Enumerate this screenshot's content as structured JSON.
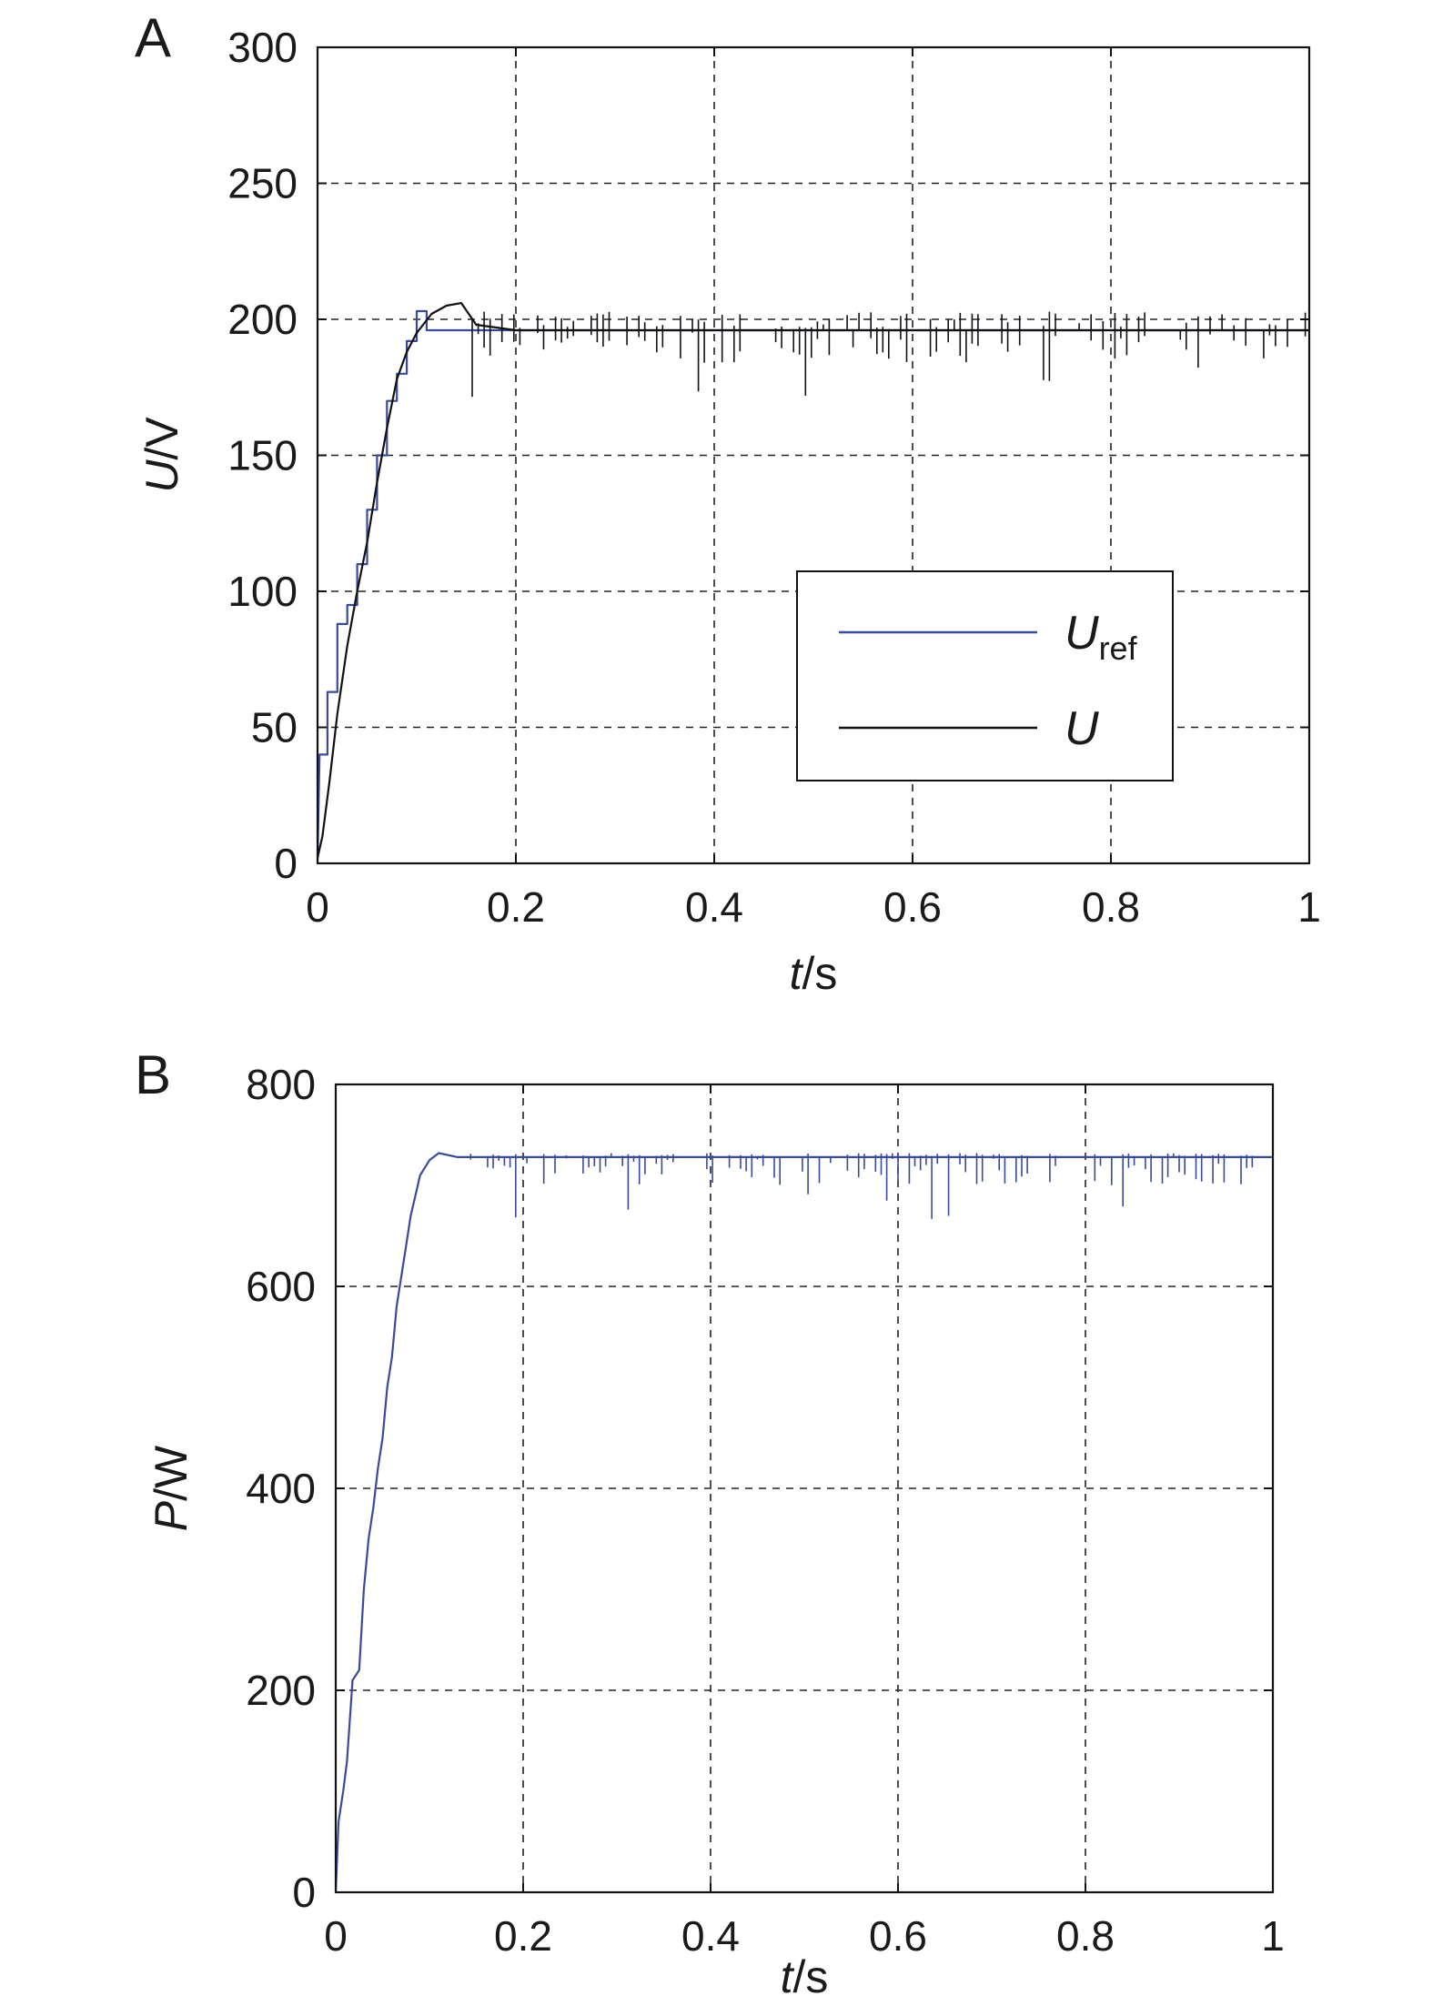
{
  "chart_data": [
    {
      "panel_label": "A",
      "type": "line",
      "xlabel": {
        "italic": "t",
        "rest": "/s"
      },
      "ylabel": {
        "italic": "U",
        "rest": "/V"
      },
      "xlim": [
        0,
        1
      ],
      "ylim": [
        0,
        300
      ],
      "xticks": [
        "0",
        "0.2",
        "0.4",
        "0.6",
        "0.8",
        "1"
      ],
      "yticks": [
        "0",
        "50",
        "100",
        "150",
        "200",
        "250",
        "300"
      ],
      "grid": true,
      "legend_placement": "center-right",
      "series": [
        {
          "name": "U",
          "name_sub": "ref",
          "color": "#3a4a9a",
          "points": [
            [
              0,
              0
            ],
            [
              0.002,
              40
            ],
            [
              0.01,
              40
            ],
            [
              0.01,
              63
            ],
            [
              0.02,
              63
            ],
            [
              0.02,
              88
            ],
            [
              0.03,
              88
            ],
            [
              0.03,
              95
            ],
            [
              0.04,
              95
            ],
            [
              0.04,
              110
            ],
            [
              0.05,
              110
            ],
            [
              0.05,
              130
            ],
            [
              0.06,
              130
            ],
            [
              0.06,
              150
            ],
            [
              0.07,
              150
            ],
            [
              0.07,
              170
            ],
            [
              0.08,
              170
            ],
            [
              0.08,
              180
            ],
            [
              0.09,
              180
            ],
            [
              0.09,
              192
            ],
            [
              0.1,
              192
            ],
            [
              0.1,
              203
            ],
            [
              0.11,
              203
            ],
            [
              0.11,
              196
            ],
            [
              0.16,
              196
            ],
            [
              1.0,
              196
            ]
          ]
        },
        {
          "name": "U",
          "color": "#111111",
          "points": [
            [
              0,
              2
            ],
            [
              0.005,
              10
            ],
            [
              0.012,
              30
            ],
            [
              0.02,
              55
            ],
            [
              0.03,
              80
            ],
            [
              0.04,
              100
            ],
            [
              0.05,
              118
            ],
            [
              0.06,
              140
            ],
            [
              0.07,
              160
            ],
            [
              0.08,
              178
            ],
            [
              0.09,
              188
            ],
            [
              0.1,
              195
            ],
            [
              0.115,
              202
            ],
            [
              0.13,
              205
            ],
            [
              0.145,
              206
            ],
            [
              0.16,
              198
            ],
            [
              0.2,
              196
            ],
            [
              1.0,
              196
            ]
          ],
          "noise": {
            "t_start": 0.15,
            "t_end": 1.0,
            "step": 0.006,
            "up": 7,
            "down": 12,
            "seed": 7
          }
        }
      ]
    },
    {
      "panel_label": "B",
      "type": "line",
      "xlabel": {
        "italic": "t",
        "rest": "/s"
      },
      "ylabel": {
        "italic": "P",
        "rest": "/W"
      },
      "xlim": [
        0,
        1
      ],
      "ylim": [
        0,
        800
      ],
      "xticks": [
        "0",
        "0.2",
        "0.4",
        "0.6",
        "0.8",
        "1"
      ],
      "yticks": [
        "0",
        "200",
        "400",
        "600",
        "800"
      ],
      "grid": true,
      "series": [
        {
          "color": "#3a4a9a",
          "points": [
            [
              0,
              0
            ],
            [
              0.003,
              70
            ],
            [
              0.008,
              100
            ],
            [
              0.012,
              130
            ],
            [
              0.018,
              210
            ],
            [
              0.025,
              220
            ],
            [
              0.03,
              300
            ],
            [
              0.035,
              350
            ],
            [
              0.04,
              380
            ],
            [
              0.045,
              420
            ],
            [
              0.05,
              450
            ],
            [
              0.055,
              500
            ],
            [
              0.06,
              530
            ],
            [
              0.065,
              580
            ],
            [
              0.07,
              610
            ],
            [
              0.075,
              640
            ],
            [
              0.08,
              670
            ],
            [
              0.085,
              690
            ],
            [
              0.09,
              710
            ],
            [
              0.1,
              725
            ],
            [
              0.11,
              732
            ],
            [
              0.13,
              728
            ],
            [
              1.0,
              728
            ]
          ],
          "noise": {
            "t_start": 0.12,
            "t_end": 1.0,
            "step": 0.006,
            "up": 4,
            "down": 28,
            "seed": 11
          }
        }
      ]
    }
  ]
}
